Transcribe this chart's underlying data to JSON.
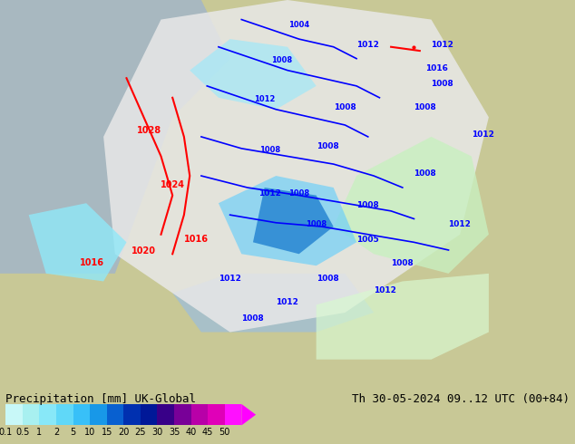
{
  "title_left": "Precipitation [mm] UK-Global",
  "title_right": "Th 30-05-2024 09..12 UTC (00+84)",
  "colorbar_labels": [
    "0.1",
    "0.5",
    "1",
    "2",
    "5",
    "10",
    "15",
    "20",
    "25",
    "30",
    "35",
    "40",
    "45",
    "50"
  ],
  "colorbar_colors": [
    "#b0f0f0",
    "#90e8e8",
    "#70d8f0",
    "#50c8f0",
    "#30b8f0",
    "#1090e8",
    "#0060d0",
    "#0030b0",
    "#002090",
    "#400080",
    "#800090",
    "#c000a0",
    "#e000b0",
    "#ff00ff"
  ],
  "bg_color": "#c8c896",
  "map_bg": "#c8c896",
  "water_color": "#7ab0d0",
  "land_color": "#c8c896",
  "fig_width": 6.34,
  "fig_height": 4.9,
  "dpi": 100
}
